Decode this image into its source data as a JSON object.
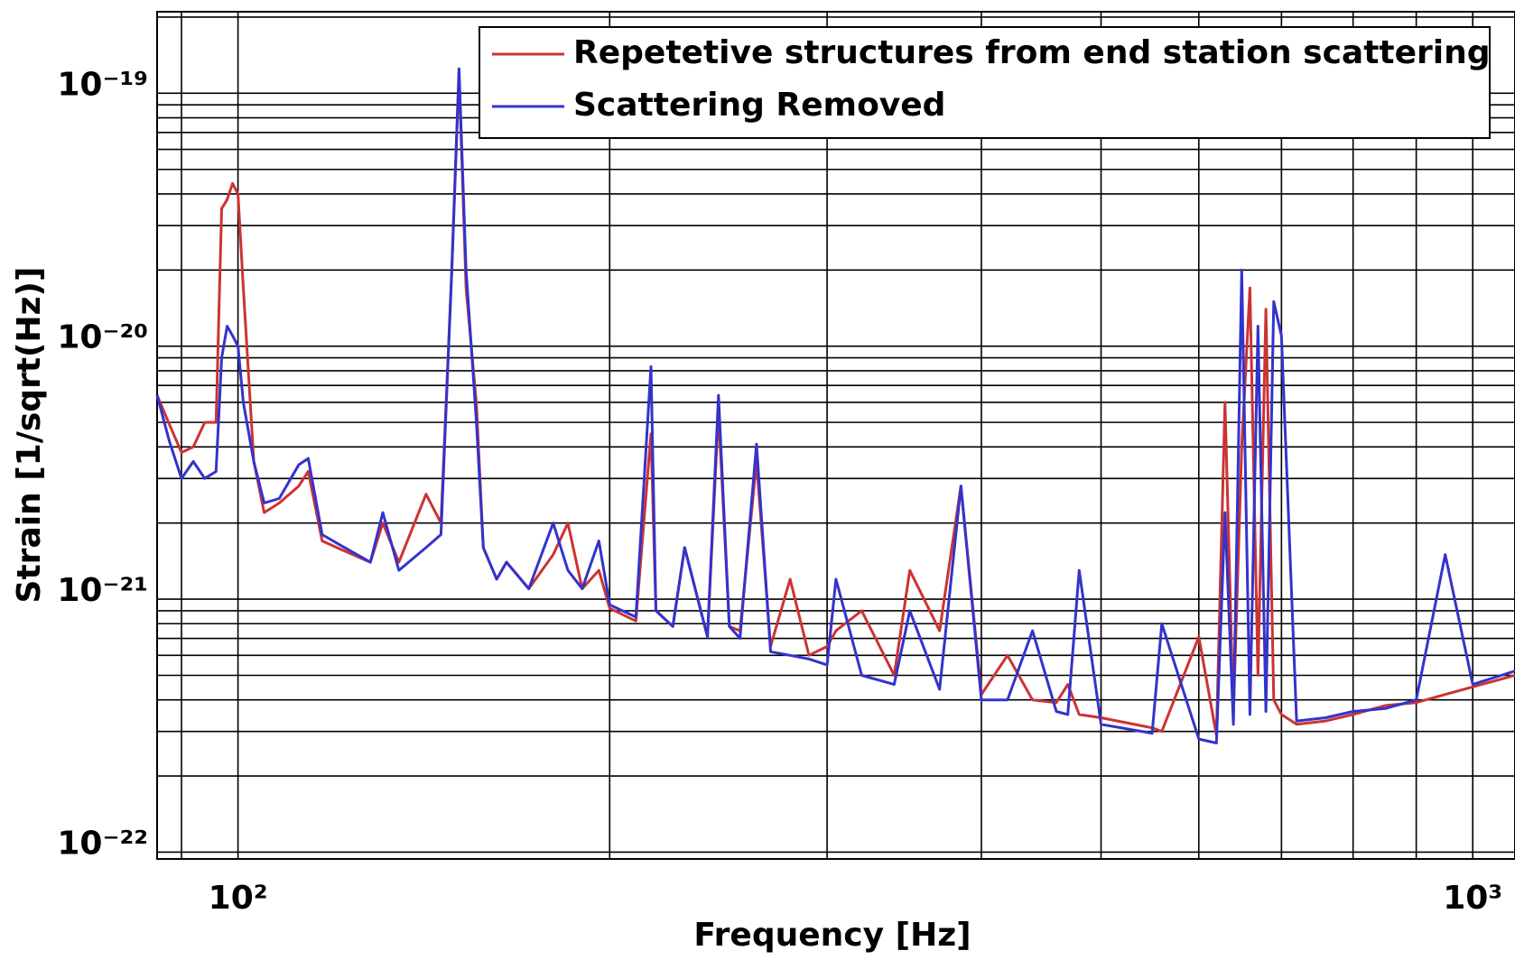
{
  "chart_data": {
    "type": "line",
    "xlabel": "Frequency [Hz]",
    "ylabel": "Strain [1/sqrt(Hz)]",
    "xscale": "log",
    "yscale": "log",
    "grid": true,
    "legend": "upper right",
    "xlim": [
      86,
      1082
    ],
    "ylim": [
      9.4e-23,
      2.1e-19
    ],
    "xticks": [
      {
        "value": 100,
        "label": "10²"
      },
      {
        "value": 1000,
        "label": "10³"
      }
    ],
    "yticks": [
      {
        "value": 1e-22,
        "label": "10⁻²²"
      },
      {
        "value": 1e-21,
        "label": "10⁻²¹"
      },
      {
        "value": 1e-20,
        "label": "10⁻²⁰"
      },
      {
        "value": 1e-19,
        "label": "10⁻¹⁹"
      }
    ],
    "xgrid_minor": [
      90,
      200,
      300,
      400,
      500,
      600,
      700,
      800,
      900
    ],
    "ygrid_minor": [
      2e-22,
      3e-22,
      4e-22,
      5e-22,
      6e-22,
      7e-22,
      8e-22,
      9e-22,
      2e-21,
      3e-21,
      4e-21,
      5e-21,
      6e-21,
      7e-21,
      8e-21,
      9e-21,
      2e-20,
      3e-20,
      4e-20,
      5e-20,
      6e-20,
      7e-20,
      8e-20,
      9e-20,
      2e-19
    ],
    "x": [
      86,
      88,
      90,
      92,
      94,
      96,
      97,
      98,
      99,
      100,
      101,
      103,
      105,
      108,
      112,
      114,
      117,
      122,
      128,
      131,
      135,
      142,
      146,
      149,
      151,
      153,
      156,
      158,
      162,
      165,
      172,
      180,
      185,
      190,
      196,
      200,
      210,
      216,
      218,
      225,
      230,
      240,
      245,
      250,
      255,
      263,
      270,
      280,
      290,
      300,
      305,
      320,
      340,
      350,
      370,
      385,
      400,
      420,
      440,
      460,
      470,
      480,
      500,
      550,
      560,
      600,
      620,
      630,
      640,
      650,
      660,
      670,
      680,
      690,
      700,
      720,
      760,
      800,
      850,
      900,
      950,
      1000,
      1082
    ],
    "series": [
      {
        "name": "Repetetive structures from end station scattering",
        "color": "#cc3333",
        "values": [
          6.4e-21,
          4.9e-21,
          3.8e-21,
          4e-21,
          5e-21,
          5e-21,
          3.5e-20,
          3.8e-20,
          4.4e-20,
          4e-20,
          1.7e-20,
          3.5e-21,
          2.2e-21,
          2.4e-21,
          2.8e-21,
          3.2e-21,
          1.7e-21,
          1.55e-21,
          1.4e-21,
          2e-21,
          1.4e-21,
          2.6e-21,
          2e-21,
          2e-20,
          1.2e-19,
          1.7e-20,
          5.9e-21,
          1.6e-21,
          1.2e-21,
          1.4e-21,
          1.1e-21,
          1.5e-21,
          2e-21,
          1.1e-21,
          1.3e-21,
          9.2e-22,
          8.2e-22,
          4.5e-21,
          9e-22,
          7.8e-22,
          1.6e-21,
          7.1e-22,
          5.5e-21,
          7.8e-22,
          7.5e-22,
          3.5e-21,
          6.5e-22,
          1.2e-21,
          6e-22,
          6.5e-22,
          7.5e-22,
          9e-22,
          5e-22,
          1.3e-21,
          7.5e-22,
          2.8e-21,
          4.2e-22,
          6e-22,
          4e-22,
          3.9e-22,
          4.6e-22,
          3.5e-22,
          3.4e-22,
          3.1e-22,
          3e-22,
          7.1e-22,
          2.9e-22,
          6e-21,
          3.5e-22,
          4e-21,
          1.7e-20,
          5e-22,
          1.4e-20,
          4e-22,
          3.5e-22,
          3.2e-22,
          3.3e-22,
          3.5e-22,
          3.8e-22,
          3.9e-22,
          4.2e-22,
          4.5e-22,
          5e-22
        ]
      },
      {
        "name": "Scattering Removed",
        "color": "#3333cc",
        "values": [
          6.4e-21,
          4.2e-21,
          3e-21,
          3.5e-21,
          3e-21,
          3.2e-21,
          9e-21,
          1.2e-20,
          1.1e-20,
          1e-20,
          6e-21,
          3.5e-21,
          2.4e-21,
          2.5e-21,
          3.4e-21,
          3.6e-21,
          1.8e-21,
          1.6e-21,
          1.4e-21,
          2.2e-21,
          1.3e-21,
          1.6e-21,
          1.8e-21,
          2e-20,
          1.25e-19,
          2e-20,
          5e-21,
          1.6e-21,
          1.2e-21,
          1.4e-21,
          1.1e-21,
          2e-21,
          1.3e-21,
          1.1e-21,
          1.7e-21,
          9.5e-22,
          8.5e-22,
          8.3e-21,
          9e-22,
          7.8e-22,
          1.6e-21,
          7.1e-22,
          6.4e-21,
          7.8e-22,
          7e-22,
          4.1e-21,
          6.2e-22,
          6e-22,
          5.8e-22,
          5.5e-22,
          1.2e-21,
          5e-22,
          4.6e-22,
          9e-22,
          4.4e-22,
          2.8e-21,
          4e-22,
          4e-22,
          7.5e-22,
          3.6e-22,
          3.5e-22,
          1.3e-21,
          3.2e-22,
          2.95e-22,
          8e-22,
          2.8e-22,
          2.7e-22,
          2.2e-21,
          3.2e-22,
          2e-20,
          3.5e-22,
          1.2e-20,
          3.6e-22,
          1.5e-20,
          1.1e-20,
          3.3e-22,
          3.4e-22,
          3.6e-22,
          3.7e-22,
          4e-22,
          1.5e-21,
          4.6e-22,
          5.2e-22
        ]
      }
    ]
  }
}
